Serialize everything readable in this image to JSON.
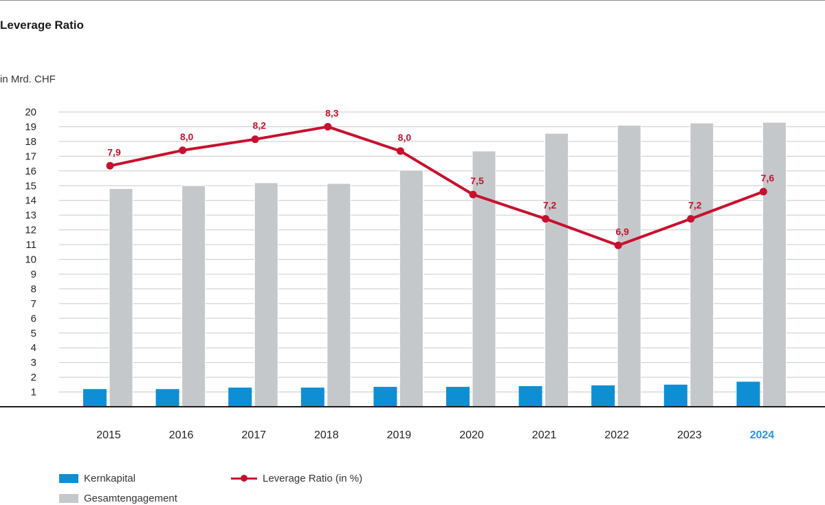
{
  "title": "Leverage Ratio",
  "unit_label": "in Mrd. CHF",
  "colors": {
    "kernkapital": "#0f8fd3",
    "gesamtengagement": "#c4c8cb",
    "leverage": "#c8102e",
    "highlight_year": "#1f9ad6"
  },
  "chart_data": {
    "type": "bar",
    "categories": [
      "2015",
      "2016",
      "2017",
      "2018",
      "2019",
      "2020",
      "2021",
      "2022",
      "2023",
      "2024"
    ],
    "highlight_category": "2024",
    "ylim": [
      0,
      20
    ],
    "yticks": [
      1,
      2,
      3,
      4,
      5,
      6,
      7,
      8,
      9,
      10,
      11,
      12,
      13,
      14,
      15,
      16,
      17,
      18,
      19,
      20
    ],
    "grid": true,
    "legend_position": "bottom-left",
    "series": [
      {
        "name": "Kernkapital",
        "type": "bar",
        "values": [
          1.2,
          1.2,
          1.3,
          1.3,
          1.35,
          1.35,
          1.4,
          1.45,
          1.5,
          1.7
        ]
      },
      {
        "name": "Gesamtengagement",
        "type": "bar",
        "values": [
          14.8,
          15.0,
          15.2,
          15.15,
          16.05,
          17.35,
          18.55,
          19.1,
          19.25,
          19.3
        ]
      },
      {
        "name": "Leverage Ratio (in %)",
        "type": "line",
        "values": [
          7.9,
          8.0,
          8.2,
          8.3,
          8.0,
          7.5,
          7.2,
          6.9,
          7.2,
          7.6
        ],
        "labels": [
          "7,9",
          "8,0",
          "8,2",
          "8,3",
          "8,0",
          "7,5",
          "7,2",
          "6,9",
          "7,2",
          "7,6"
        ],
        "plot_positions": [
          16.35,
          17.4,
          18.15,
          19.0,
          17.35,
          14.4,
          12.75,
          10.95,
          12.75,
          14.6
        ]
      }
    ]
  }
}
